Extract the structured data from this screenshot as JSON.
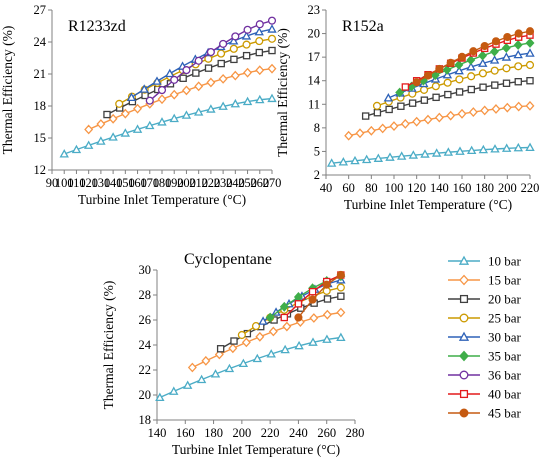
{
  "chart_data": [
    {
      "type": "line",
      "title": "R1233zd",
      "xlabel": "Turbine Inlet Temperature (°C)",
      "ylabel": "Thermal Efficiency (%)",
      "xlim": [
        90,
        270
      ],
      "ylim": [
        12,
        27
      ],
      "xticks": [
        90,
        100,
        110,
        120,
        130,
        140,
        150,
        160,
        170,
        180,
        190,
        200,
        210,
        220,
        230,
        240,
        250,
        260,
        270
      ],
      "yticks": [
        12,
        15,
        18,
        21,
        24,
        27
      ],
      "grid": false,
      "series": [
        {
          "name": "10 bar",
          "x": [
            100,
            270
          ],
          "y": [
            13.5,
            18.7
          ],
          "n": 18
        },
        {
          "name": "15 bar",
          "x": [
            120,
            270
          ],
          "y": [
            15.8,
            21.5
          ],
          "n": 16
        },
        {
          "name": "20 bar",
          "x": [
            135,
            270
          ],
          "y": [
            17.2,
            23.2
          ],
          "n": 14
        },
        {
          "name": "25 bar",
          "x": [
            145,
            270
          ],
          "y": [
            18.2,
            24.3
          ],
          "n": 13
        },
        {
          "name": "30 bar",
          "x": [
            155,
            270
          ],
          "y": [
            18.8,
            25.2
          ],
          "n": 12
        },
        {
          "name": "36 bar",
          "x": [
            170,
            270
          ],
          "y": [
            18.5,
            26.0
          ],
          "n": 11
        }
      ]
    },
    {
      "type": "line",
      "title": "R152a",
      "xlabel": "Turbine Inlet Temperature (°C)",
      "ylabel": "Thermal Efficiency (%)",
      "xlim": [
        40,
        220
      ],
      "ylim": [
        2,
        23
      ],
      "xticks": [
        40,
        60,
        80,
        100,
        120,
        140,
        160,
        180,
        200,
        220
      ],
      "yticks": [
        2,
        5,
        8,
        11,
        14,
        17,
        20,
        23
      ],
      "grid": false,
      "series": [
        {
          "name": "10 bar",
          "x": [
            45,
            220
          ],
          "y": [
            3.5,
            5.5
          ],
          "n": 18
        },
        {
          "name": "15 bar",
          "x": [
            60,
            220
          ],
          "y": [
            7.0,
            10.8
          ],
          "n": 17
        },
        {
          "name": "20 bar",
          "x": [
            75,
            220
          ],
          "y": [
            9.5,
            14.0
          ],
          "n": 15
        },
        {
          "name": "25 bar",
          "x": [
            85,
            220
          ],
          "y": [
            10.8,
            16.0
          ],
          "n": 14
        },
        {
          "name": "30 bar",
          "x": [
            95,
            220
          ],
          "y": [
            11.8,
            17.5
          ],
          "n": 13
        },
        {
          "name": "35 bar",
          "x": [
            105,
            220
          ],
          "y": [
            12.5,
            18.8
          ],
          "n": 12
        },
        {
          "name": "40 bar",
          "x": [
            110,
            220
          ],
          "y": [
            13.2,
            19.8
          ],
          "n": 12
        },
        {
          "name": "45 bar",
          "x": [
            120,
            220
          ],
          "y": [
            13.8,
            20.3
          ],
          "n": 11
        }
      ]
    },
    {
      "type": "line",
      "title": "Cyclopentane",
      "xlabel": "Turbine Inlet Temperature (°C)",
      "ylabel": "Thermal Efficiency (%)",
      "xlim": [
        140,
        280
      ],
      "ylim": [
        18,
        30
      ],
      "xticks": [
        140,
        160,
        180,
        200,
        220,
        240,
        260,
        280
      ],
      "yticks": [
        18,
        20,
        22,
        24,
        26,
        28,
        30
      ],
      "grid": false,
      "series": [
        {
          "name": "10 bar",
          "x": [
            142,
            270
          ],
          "y": [
            19.8,
            24.6
          ],
          "n": 14
        },
        {
          "name": "15 bar",
          "x": [
            165,
            270
          ],
          "y": [
            22.2,
            26.6
          ],
          "n": 12
        },
        {
          "name": "20 bar",
          "x": [
            185,
            270
          ],
          "y": [
            23.7,
            27.9
          ],
          "n": 10
        },
        {
          "name": "25 bar",
          "x": [
            200,
            270
          ],
          "y": [
            24.8,
            28.6
          ],
          "n": 8
        },
        {
          "name": "30 bar",
          "x": [
            215,
            270
          ],
          "y": [
            25.9,
            29.2
          ],
          "n": 7
        },
        {
          "name": "35 bar",
          "x": [
            220,
            270
          ],
          "y": [
            26.2,
            29.5
          ],
          "n": 6
        },
        {
          "name": "40 bar",
          "x": [
            230,
            270
          ],
          "y": [
            26.2,
            29.6
          ],
          "n": 5
        },
        {
          "name": "45 bar",
          "x": [
            240,
            270
          ],
          "y": [
            26.2,
            29.6
          ],
          "n": 4
        }
      ]
    }
  ],
  "legend": {
    "placement": "right",
    "items": [
      {
        "label": "10 bar",
        "color": "#4BACC6",
        "marker": "triangle",
        "fill": "none"
      },
      {
        "label": "15 bar",
        "color": "#F79646",
        "marker": "diamond",
        "fill": "none"
      },
      {
        "label": "20 bar",
        "color": "#404040",
        "marker": "square",
        "fill": "none"
      },
      {
        "label": "25 bar",
        "color": "#CC9A00",
        "marker": "circle",
        "fill": "none"
      },
      {
        "label": "30 bar",
        "color": "#2E62B8",
        "marker": "triangle",
        "fill": "none"
      },
      {
        "label": "35 bar",
        "color": "#3FAE49",
        "marker": "diamond",
        "fill": "filled"
      },
      {
        "label": "36 bar",
        "color": "#7030A0",
        "marker": "circle",
        "fill": "none"
      },
      {
        "label": "40 bar",
        "color": "#E31A1C",
        "marker": "square",
        "fill": "none"
      },
      {
        "label": "45 bar",
        "color": "#C55A11",
        "marker": "circle",
        "fill": "filled"
      }
    ]
  }
}
